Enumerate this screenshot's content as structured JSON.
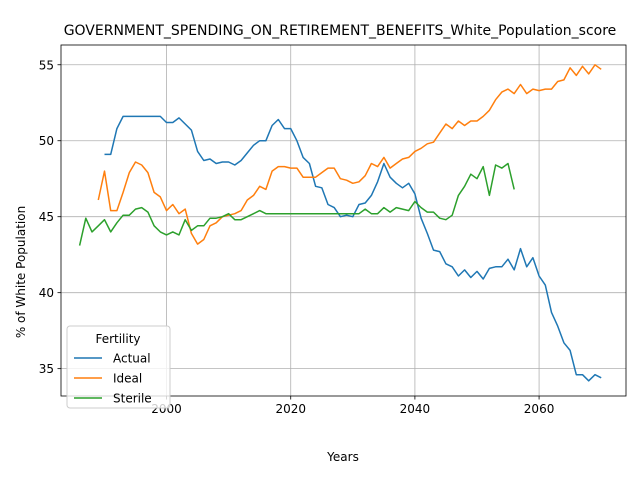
{
  "chart_data": {
    "type": "line",
    "title": "GOVERNMENT_SPENDING_ON_RETIREMENT_BENEFITS_White_Population_score",
    "xlabel": "Years",
    "ylabel": "% of White Population",
    "xlim": [
      1983,
      2074
    ],
    "ylim": [
      33.2,
      56.3
    ],
    "xticks": [
      2000,
      2020,
      2040,
      2060
    ],
    "yticks": [
      35,
      40,
      45,
      50,
      55
    ],
    "grid": true,
    "legend": {
      "title": "Fertility",
      "placement": "lower-left"
    },
    "series": [
      {
        "name": "Actual",
        "color": "#1f77b4",
        "x": [
          1990,
          1991,
          1992,
          1993,
          1994,
          1995,
          1996,
          1997,
          1998,
          1999,
          2000,
          2001,
          2002,
          2003,
          2004,
          2005,
          2006,
          2007,
          2008,
          2009,
          2010,
          2011,
          2012,
          2013,
          2014,
          2015,
          2016,
          2017,
          2018,
          2019,
          2020,
          2021,
          2022,
          2023,
          2024,
          2025,
          2026,
          2027,
          2028,
          2029,
          2030,
          2031,
          2032,
          2033,
          2034,
          2035,
          2036,
          2037,
          2038,
          2039,
          2040,
          2041,
          2042,
          2043,
          2044,
          2045,
          2046,
          2047,
          2048,
          2049,
          2050,
          2051,
          2052,
          2053,
          2054,
          2055,
          2056,
          2057,
          2058,
          2059,
          2060,
          2061,
          2062,
          2063,
          2064,
          2065,
          2066,
          2067,
          2068,
          2069,
          2070
        ],
        "values": [
          49.1,
          49.1,
          50.8,
          51.6,
          51.6,
          51.6,
          51.6,
          51.6,
          51.6,
          51.6,
          51.2,
          51.2,
          51.5,
          51.1,
          50.7,
          49.3,
          48.7,
          48.8,
          48.5,
          48.6,
          48.6,
          48.4,
          48.7,
          49.2,
          49.7,
          50.0,
          50.0,
          51.0,
          51.4,
          50.8,
          50.8,
          50.0,
          48.9,
          48.5,
          47.0,
          46.9,
          45.8,
          45.6,
          45.0,
          45.1,
          45.0,
          45.8,
          45.9,
          46.4,
          47.3,
          48.5,
          47.6,
          47.2,
          46.9,
          47.2,
          46.5,
          44.9,
          43.9,
          42.8,
          42.7,
          41.9,
          41.7,
          41.1,
          41.5,
          41.0,
          41.4,
          40.9,
          41.6,
          41.7,
          41.7,
          42.2,
          41.5,
          42.9,
          41.7,
          42.3,
          41.1,
          40.5,
          38.7,
          37.8,
          36.7,
          36.2,
          34.6,
          34.6,
          34.2,
          34.6,
          34.4
        ]
      },
      {
        "name": "Ideal",
        "color": "#ff7f0e",
        "x": [
          1989,
          1990,
          1991,
          1992,
          1993,
          1994,
          1995,
          1996,
          1997,
          1998,
          1999,
          2000,
          2001,
          2002,
          2003,
          2004,
          2005,
          2006,
          2007,
          2008,
          2009,
          2010,
          2011,
          2012,
          2013,
          2014,
          2015,
          2016,
          2017,
          2018,
          2019,
          2020,
          2021,
          2022,
          2023,
          2024,
          2025,
          2026,
          2027,
          2028,
          2029,
          2030,
          2031,
          2032,
          2033,
          2034,
          2035,
          2036,
          2037,
          2038,
          2039,
          2040,
          2041,
          2042,
          2043,
          2044,
          2045,
          2046,
          2047,
          2048,
          2049,
          2050,
          2051,
          2052,
          2053,
          2054,
          2055,
          2056,
          2057,
          2058,
          2059,
          2060,
          2061,
          2062,
          2063,
          2064,
          2065,
          2066,
          2067,
          2068,
          2069,
          2070
        ],
        "values": [
          46.1,
          48.0,
          45.4,
          45.4,
          46.6,
          47.9,
          48.6,
          48.4,
          47.9,
          46.6,
          46.3,
          45.4,
          45.8,
          45.2,
          45.5,
          43.9,
          43.2,
          43.5,
          44.4,
          44.6,
          45.0,
          45.1,
          45.2,
          45.4,
          46.1,
          46.4,
          47.0,
          46.8,
          48.0,
          48.3,
          48.3,
          48.2,
          48.2,
          47.6,
          47.6,
          47.6,
          47.9,
          48.2,
          48.2,
          47.5,
          47.4,
          47.2,
          47.3,
          47.7,
          48.5,
          48.3,
          48.9,
          48.2,
          48.5,
          48.8,
          48.9,
          49.3,
          49.5,
          49.8,
          49.9,
          50.5,
          51.1,
          50.8,
          51.3,
          51.0,
          51.3,
          51.3,
          51.6,
          52.0,
          52.7,
          53.2,
          53.4,
          53.1,
          53.7,
          53.1,
          53.4,
          53.3,
          53.4,
          53.4,
          53.9,
          54.0,
          54.8,
          54.3,
          54.9,
          54.4,
          55.0,
          54.7
        ]
      },
      {
        "name": "Sterile",
        "color": "#2ca02c",
        "x": [
          1986,
          1987,
          1988,
          1989,
          1990,
          1991,
          1992,
          1993,
          1994,
          1995,
          1996,
          1997,
          1998,
          1999,
          2000,
          2001,
          2002,
          2003,
          2004,
          2005,
          2006,
          2007,
          2008,
          2009,
          2010,
          2011,
          2012,
          2013,
          2014,
          2015,
          2016,
          2017,
          2018,
          2019,
          2020,
          2021,
          2022,
          2023,
          2024,
          2025,
          2026,
          2027,
          2028,
          2029,
          2030,
          2031,
          2032,
          2033,
          2034,
          2035,
          2036,
          2037,
          2038,
          2039,
          2040,
          2041,
          2042,
          2043,
          2044,
          2045,
          2046,
          2047,
          2048,
          2049,
          2050,
          2051,
          2052,
          2053,
          2054,
          2055,
          2056
        ],
        "values": [
          43.1,
          44.9,
          44.0,
          44.4,
          44.8,
          44.0,
          44.6,
          45.1,
          45.1,
          45.5,
          45.6,
          45.3,
          44.4,
          44.0,
          43.8,
          44.0,
          43.8,
          44.8,
          44.1,
          44.4,
          44.4,
          44.9,
          44.9,
          45.0,
          45.2,
          44.8,
          44.8,
          45.0,
          45.2,
          45.4,
          45.2,
          45.2,
          45.2,
          45.2,
          45.2,
          45.2,
          45.2,
          45.2,
          45.2,
          45.2,
          45.2,
          45.2,
          45.2,
          45.2,
          45.2,
          45.2,
          45.5,
          45.2,
          45.2,
          45.6,
          45.3,
          45.6,
          45.5,
          45.4,
          46.0,
          45.6,
          45.3,
          45.3,
          44.9,
          44.8,
          45.1,
          46.4,
          47.0,
          47.8,
          47.5,
          48.3,
          46.4,
          48.4,
          48.2,
          48.5,
          46.8
        ]
      }
    ]
  }
}
